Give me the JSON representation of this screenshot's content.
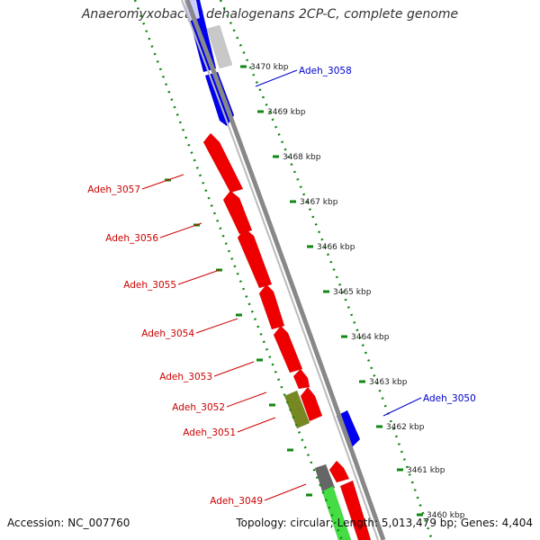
{
  "title": "Anaeromyxobacter dehalogenans 2CP-C, complete genome",
  "footer": {
    "accession": "Accession: NC_007760",
    "stats": "Topology: circular; Length: 5,013,479 bp; Genes: 4,404"
  },
  "colors": {
    "backbone": "#888888",
    "tick": "#118811",
    "forward_gene": "#0000ee",
    "reverse_gene": "#ee0000",
    "label_forward": "#0000cc",
    "label_reverse": "#cc0000"
  },
  "kbp_ticks": [
    "3470 kbp",
    "3469 kbp",
    "3468 kbp",
    "3467 kbp",
    "3466 kbp",
    "3465 kbp",
    "3464 kbp",
    "3463 kbp",
    "3462 kbp",
    "3461 kbp",
    "3460 kbp"
  ],
  "gene_labels": [
    {
      "name": "Adeh_3058",
      "strand": "forward"
    },
    {
      "name": "Adeh_3057",
      "strand": "reverse"
    },
    {
      "name": "Adeh_3056",
      "strand": "reverse"
    },
    {
      "name": "Adeh_3055",
      "strand": "reverse"
    },
    {
      "name": "Adeh_3054",
      "strand": "reverse"
    },
    {
      "name": "Adeh_3053",
      "strand": "reverse"
    },
    {
      "name": "Adeh_3052",
      "strand": "reverse"
    },
    {
      "name": "Adeh_3051",
      "strand": "reverse"
    },
    {
      "name": "Adeh_3050",
      "strand": "forward"
    },
    {
      "name": "Adeh_3049",
      "strand": "reverse"
    }
  ]
}
